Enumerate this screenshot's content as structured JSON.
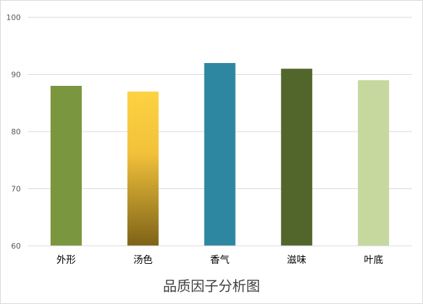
{
  "chart_data": {
    "type": "bar",
    "title": "品质因子分析图",
    "xlabel": "",
    "ylabel": "",
    "categories": [
      "外形",
      "汤色",
      "香气",
      "滋味",
      "叶底"
    ],
    "values": [
      88,
      87,
      92,
      91,
      89
    ],
    "ylim": [
      60,
      100
    ],
    "yticks": [
      60,
      70,
      80,
      90,
      100
    ],
    "grid": true,
    "legend": "none",
    "bar_colors": [
      "#7a963e",
      "gradient",
      "#2e87a0",
      "#52662c",
      "#c6d89e"
    ],
    "gradient_colors": [
      "#fdd242",
      "#7d6318"
    ]
  }
}
